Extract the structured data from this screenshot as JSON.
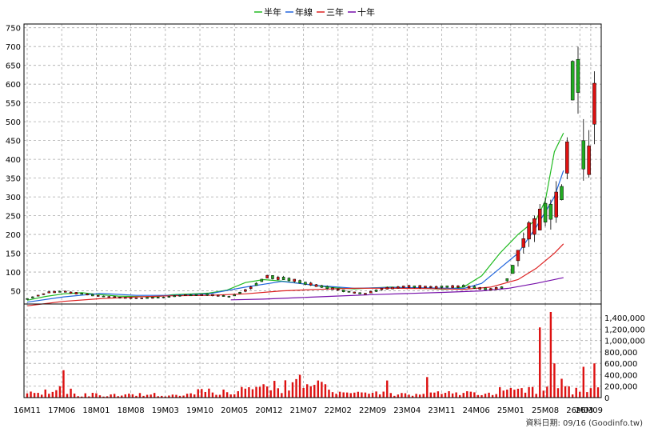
{
  "legend": [
    {
      "label": "半年",
      "color": "#22bb22"
    },
    {
      "label": "年線",
      "color": "#2266dd"
    },
    {
      "label": "三年",
      "color": "#dd2222"
    },
    {
      "label": "十年",
      "color": "#7711aa"
    }
  ],
  "credit": "資料日期: 09/16 (Goodinfo.tw)",
  "colors": {
    "candle_up": "#dd1111",
    "candle_down": "#22aa22",
    "volume": "#dd1111",
    "grid": "#aaaaaa",
    "axis": "#000000"
  },
  "chart_data": [
    {
      "type": "candlestick",
      "panel": "price",
      "ylim": [
        15,
        760
      ],
      "yticks": [
        50,
        100,
        150,
        200,
        250,
        300,
        350,
        400,
        450,
        500,
        550,
        600,
        650,
        700,
        750
      ],
      "grid": true,
      "legend_position": "top-center",
      "series": [
        {
          "name": "半年",
          "points": [
            [
              0,
              25
            ],
            [
              10,
              35
            ],
            [
              20,
              42
            ],
            [
              30,
              45
            ],
            [
              40,
              40
            ],
            [
              50,
              36
            ],
            [
              70,
              34
            ],
            [
              80,
              40
            ],
            [
              100,
              44
            ],
            [
              110,
              52
            ],
            [
              120,
              72
            ],
            [
              130,
              80
            ],
            [
              140,
              76
            ],
            [
              150,
              70
            ],
            [
              160,
              63
            ],
            [
              170,
              58
            ],
            [
              180,
              55
            ],
            [
              190,
              58
            ],
            [
              200,
              60
            ],
            [
              210,
              58
            ],
            [
              220,
              56
            ],
            [
              230,
              54
            ],
            [
              240,
              60
            ],
            [
              250,
              90
            ],
            [
              260,
              150
            ],
            [
              270,
              200
            ],
            [
              280,
              240
            ],
            [
              285,
              290
            ],
            [
              290,
              420
            ],
            [
              295,
              470
            ]
          ]
        },
        {
          "name": "年線",
          "points": [
            [
              0,
              20
            ],
            [
              20,
              34
            ],
            [
              40,
              43
            ],
            [
              60,
              38
            ],
            [
              80,
              38
            ],
            [
              100,
              42
            ],
            [
              120,
              60
            ],
            [
              140,
              75
            ],
            [
              160,
              64
            ],
            [
              180,
              57
            ],
            [
              200,
              59
            ],
            [
              220,
              58
            ],
            [
              240,
              56
            ],
            [
              250,
              70
            ],
            [
              260,
              110
            ],
            [
              270,
              150
            ],
            [
              280,
              220
            ],
            [
              290,
              300
            ],
            [
              295,
              370
            ]
          ]
        },
        {
          "name": "三年",
          "points": [
            [
              0,
              10
            ],
            [
              20,
              22
            ],
            [
              40,
              29
            ],
            [
              60,
              34
            ],
            [
              80,
              37
            ],
            [
              100,
              38
            ],
            [
              120,
              42
            ],
            [
              140,
              50
            ],
            [
              160,
              54
            ],
            [
              180,
              57
            ],
            [
              200,
              57
            ],
            [
              220,
              56
            ],
            [
              240,
              54
            ],
            [
              255,
              60
            ],
            [
              270,
              80
            ],
            [
              280,
              110
            ],
            [
              290,
              150
            ],
            [
              295,
              175
            ]
          ]
        },
        {
          "name": "十年",
          "points": [
            [
              112,
              26
            ],
            [
              130,
              28
            ],
            [
              150,
              32
            ],
            [
              170,
              36
            ],
            [
              190,
              40
            ],
            [
              210,
              43
            ],
            [
              230,
              46
            ],
            [
              250,
              50
            ],
            [
              265,
              57
            ],
            [
              280,
              70
            ],
            [
              295,
              85
            ]
          ]
        }
      ]
    },
    {
      "type": "bar",
      "panel": "volume",
      "ylim": [
        0,
        1500000
      ],
      "yticks": [
        0,
        200000,
        400000,
        600000,
        800000,
        1000000,
        1200000,
        1400000
      ],
      "ytick_labels": [
        "0",
        "200,000",
        "400,000",
        "600,000",
        "800,000",
        "1,000,000",
        "1,200,000",
        "1,400,000"
      ],
      "xticks": [
        {
          "month": 0,
          "label": "16M11"
        },
        {
          "month": 19,
          "label": "17M06"
        },
        {
          "month": 38,
          "label": "18M01"
        },
        {
          "month": 57,
          "label": "18M08"
        },
        {
          "month": 76,
          "label": "19M03"
        },
        {
          "month": 95,
          "label": "19M10"
        },
        {
          "month": 114,
          "label": "20M05"
        },
        {
          "month": 133,
          "label": "20M12"
        },
        {
          "month": 152,
          "label": "21M07"
        },
        {
          "month": 171,
          "label": "22M02"
        },
        {
          "month": 190,
          "label": "22M09"
        },
        {
          "month": 209,
          "label": "23M04"
        },
        {
          "month": 228,
          "label": "23M11"
        },
        {
          "month": 247,
          "label": "24M06"
        },
        {
          "month": 266,
          "label": "25M01"
        },
        {
          "month": 285,
          "label": "25M08"
        },
        {
          "month": 304,
          "label": "26M03"
        },
        {
          "month": 310,
          "label": "26M09"
        }
      ]
    }
  ]
}
